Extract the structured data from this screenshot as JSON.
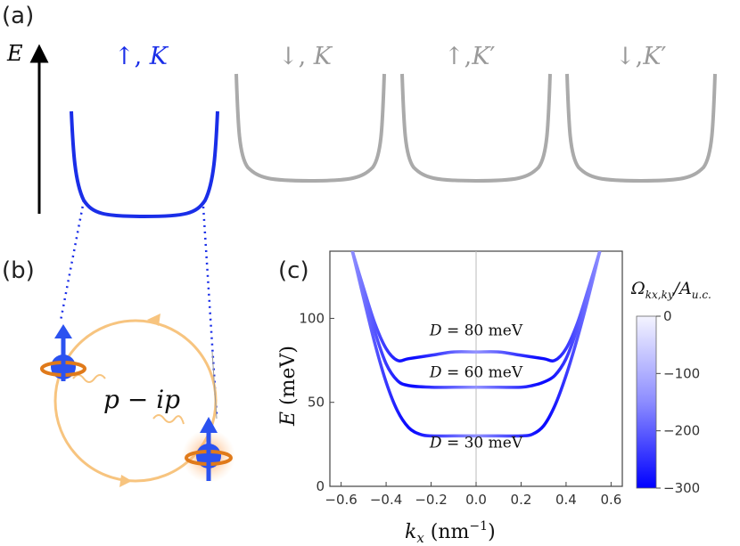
{
  "panel_a": {
    "label": "(a)",
    "axis_label": "E",
    "bands": [
      {
        "arrow": "↑",
        "valley": "K",
        "prime": "",
        "color": "#1a2ee8"
      },
      {
        "arrow": "↓",
        "valley": "K",
        "prime": "",
        "color": "#aaaaaa"
      },
      {
        "arrow": "↑",
        "valley": "K",
        "prime": "′",
        "color": "#aaaaaa"
      },
      {
        "arrow": "↓",
        "valley": "K",
        "prime": "′",
        "color": "#aaaaaa"
      }
    ]
  },
  "panel_b": {
    "label": "(b)",
    "pairing_p": "p",
    "pairing_minus": " − ",
    "pairing_ip": "ip",
    "orbit_color": "#f7c47f",
    "spin_color": "#2b52f0"
  },
  "panel_c": {
    "label": "(c)",
    "colorbar": {
      "label_main": "Ω",
      "label_sub": "kx,ky",
      "label_div": "/A",
      "label_sub2": "u.c.",
      "ticks": [
        "0",
        "−100",
        "−200",
        "−300"
      ],
      "color_top": "#f4f4ff",
      "color_bottom": "#0000ff"
    }
  },
  "chart_data": {
    "type": "line",
    "xlabel_var": "k",
    "xlabel_sub": "x",
    "xlabel_unit": " (nm",
    "xlabel_exp": "−1",
    "xlabel_close": ")",
    "ylabel_var": "E",
    "ylabel_unit": " (meV)",
    "xlim": [
      -0.65,
      0.65
    ],
    "ylim": [
      0,
      140
    ],
    "xticks": [
      -0.6,
      -0.4,
      -0.2,
      0.0,
      0.2,
      0.4,
      0.6
    ],
    "xtick_labels": [
      "−0.6",
      "−0.4",
      "−0.2",
      "0.0",
      "0.2",
      "0.4",
      "0.6"
    ],
    "yticks": [
      0,
      50,
      100
    ],
    "ytick_labels": [
      "0",
      "50",
      "100"
    ],
    "series": [
      {
        "name": "D = 80 meV",
        "label_var": "D",
        "label_rest": " = 80 meV",
        "x": [
          -0.55,
          -0.5,
          -0.45,
          -0.4,
          -0.35,
          -0.3,
          -0.2,
          -0.1,
          0,
          0.1,
          0.2,
          0.3,
          0.35,
          0.4,
          0.45,
          0.5,
          0.55
        ],
        "y": [
          140,
          118,
          97,
          82,
          75,
          76,
          78,
          80,
          80,
          80,
          78,
          76,
          75,
          82,
          97,
          118,
          140
        ]
      },
      {
        "name": "D = 60 meV",
        "label_var": "D",
        "label_rest": " = 60 meV",
        "x": [
          -0.55,
          -0.5,
          -0.45,
          -0.4,
          -0.35,
          -0.3,
          -0.2,
          -0.1,
          0,
          0.1,
          0.2,
          0.25,
          0.3,
          0.35,
          0.4,
          0.45,
          0.5,
          0.55
        ],
        "y": [
          140,
          116,
          92,
          73,
          63,
          60,
          59,
          59,
          59,
          59,
          59,
          60,
          62,
          66,
          76,
          94,
          117,
          140
        ]
      },
      {
        "name": "D = 30 meV",
        "label_var": "D",
        "label_rest": " = 30 meV",
        "x": [
          -0.55,
          -0.5,
          -0.45,
          -0.4,
          -0.35,
          -0.3,
          -0.25,
          -0.2,
          -0.1,
          0,
          0.1,
          0.2,
          0.25,
          0.3,
          0.35,
          0.4,
          0.45,
          0.5,
          0.55
        ],
        "y": [
          140,
          112,
          85,
          62,
          45,
          35,
          31,
          30,
          30,
          30,
          30,
          30,
          31,
          36,
          48,
          66,
          88,
          113,
          140
        ]
      }
    ]
  }
}
